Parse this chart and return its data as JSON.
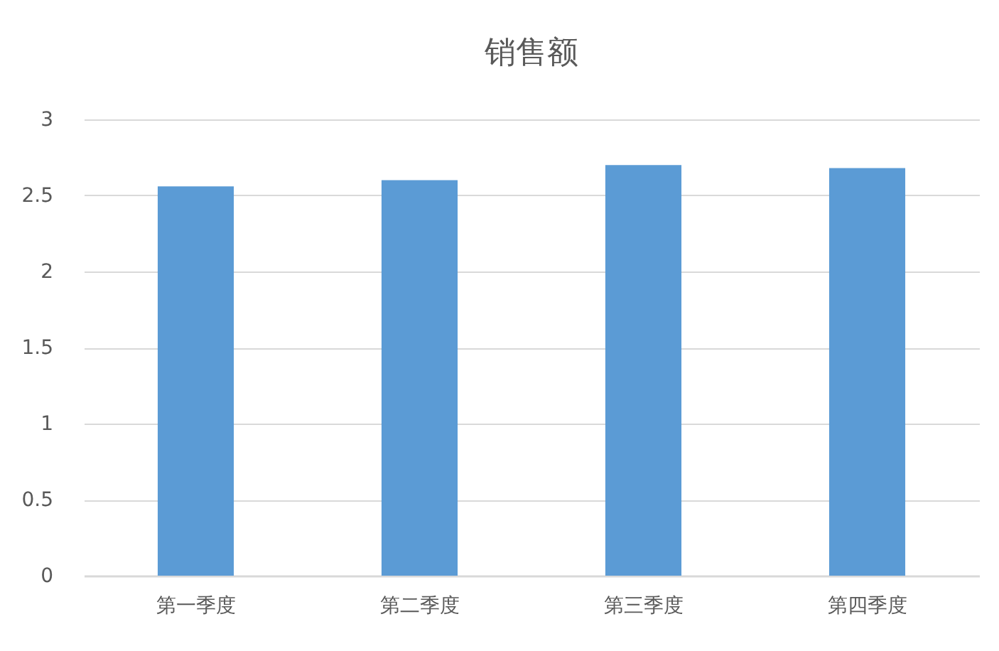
{
  "chart_data": {
    "type": "bar",
    "title": "销售额",
    "categories": [
      "第一季度",
      "第二季度",
      "第三季度",
      "第四季度"
    ],
    "values": [
      2.56,
      2.6,
      2.7,
      2.68
    ],
    "color": "#5b9bd5",
    "ylim": [
      0,
      3
    ],
    "yticks": [
      0,
      0.5,
      1,
      1.5,
      2,
      2.5,
      3
    ],
    "grid": "y"
  }
}
